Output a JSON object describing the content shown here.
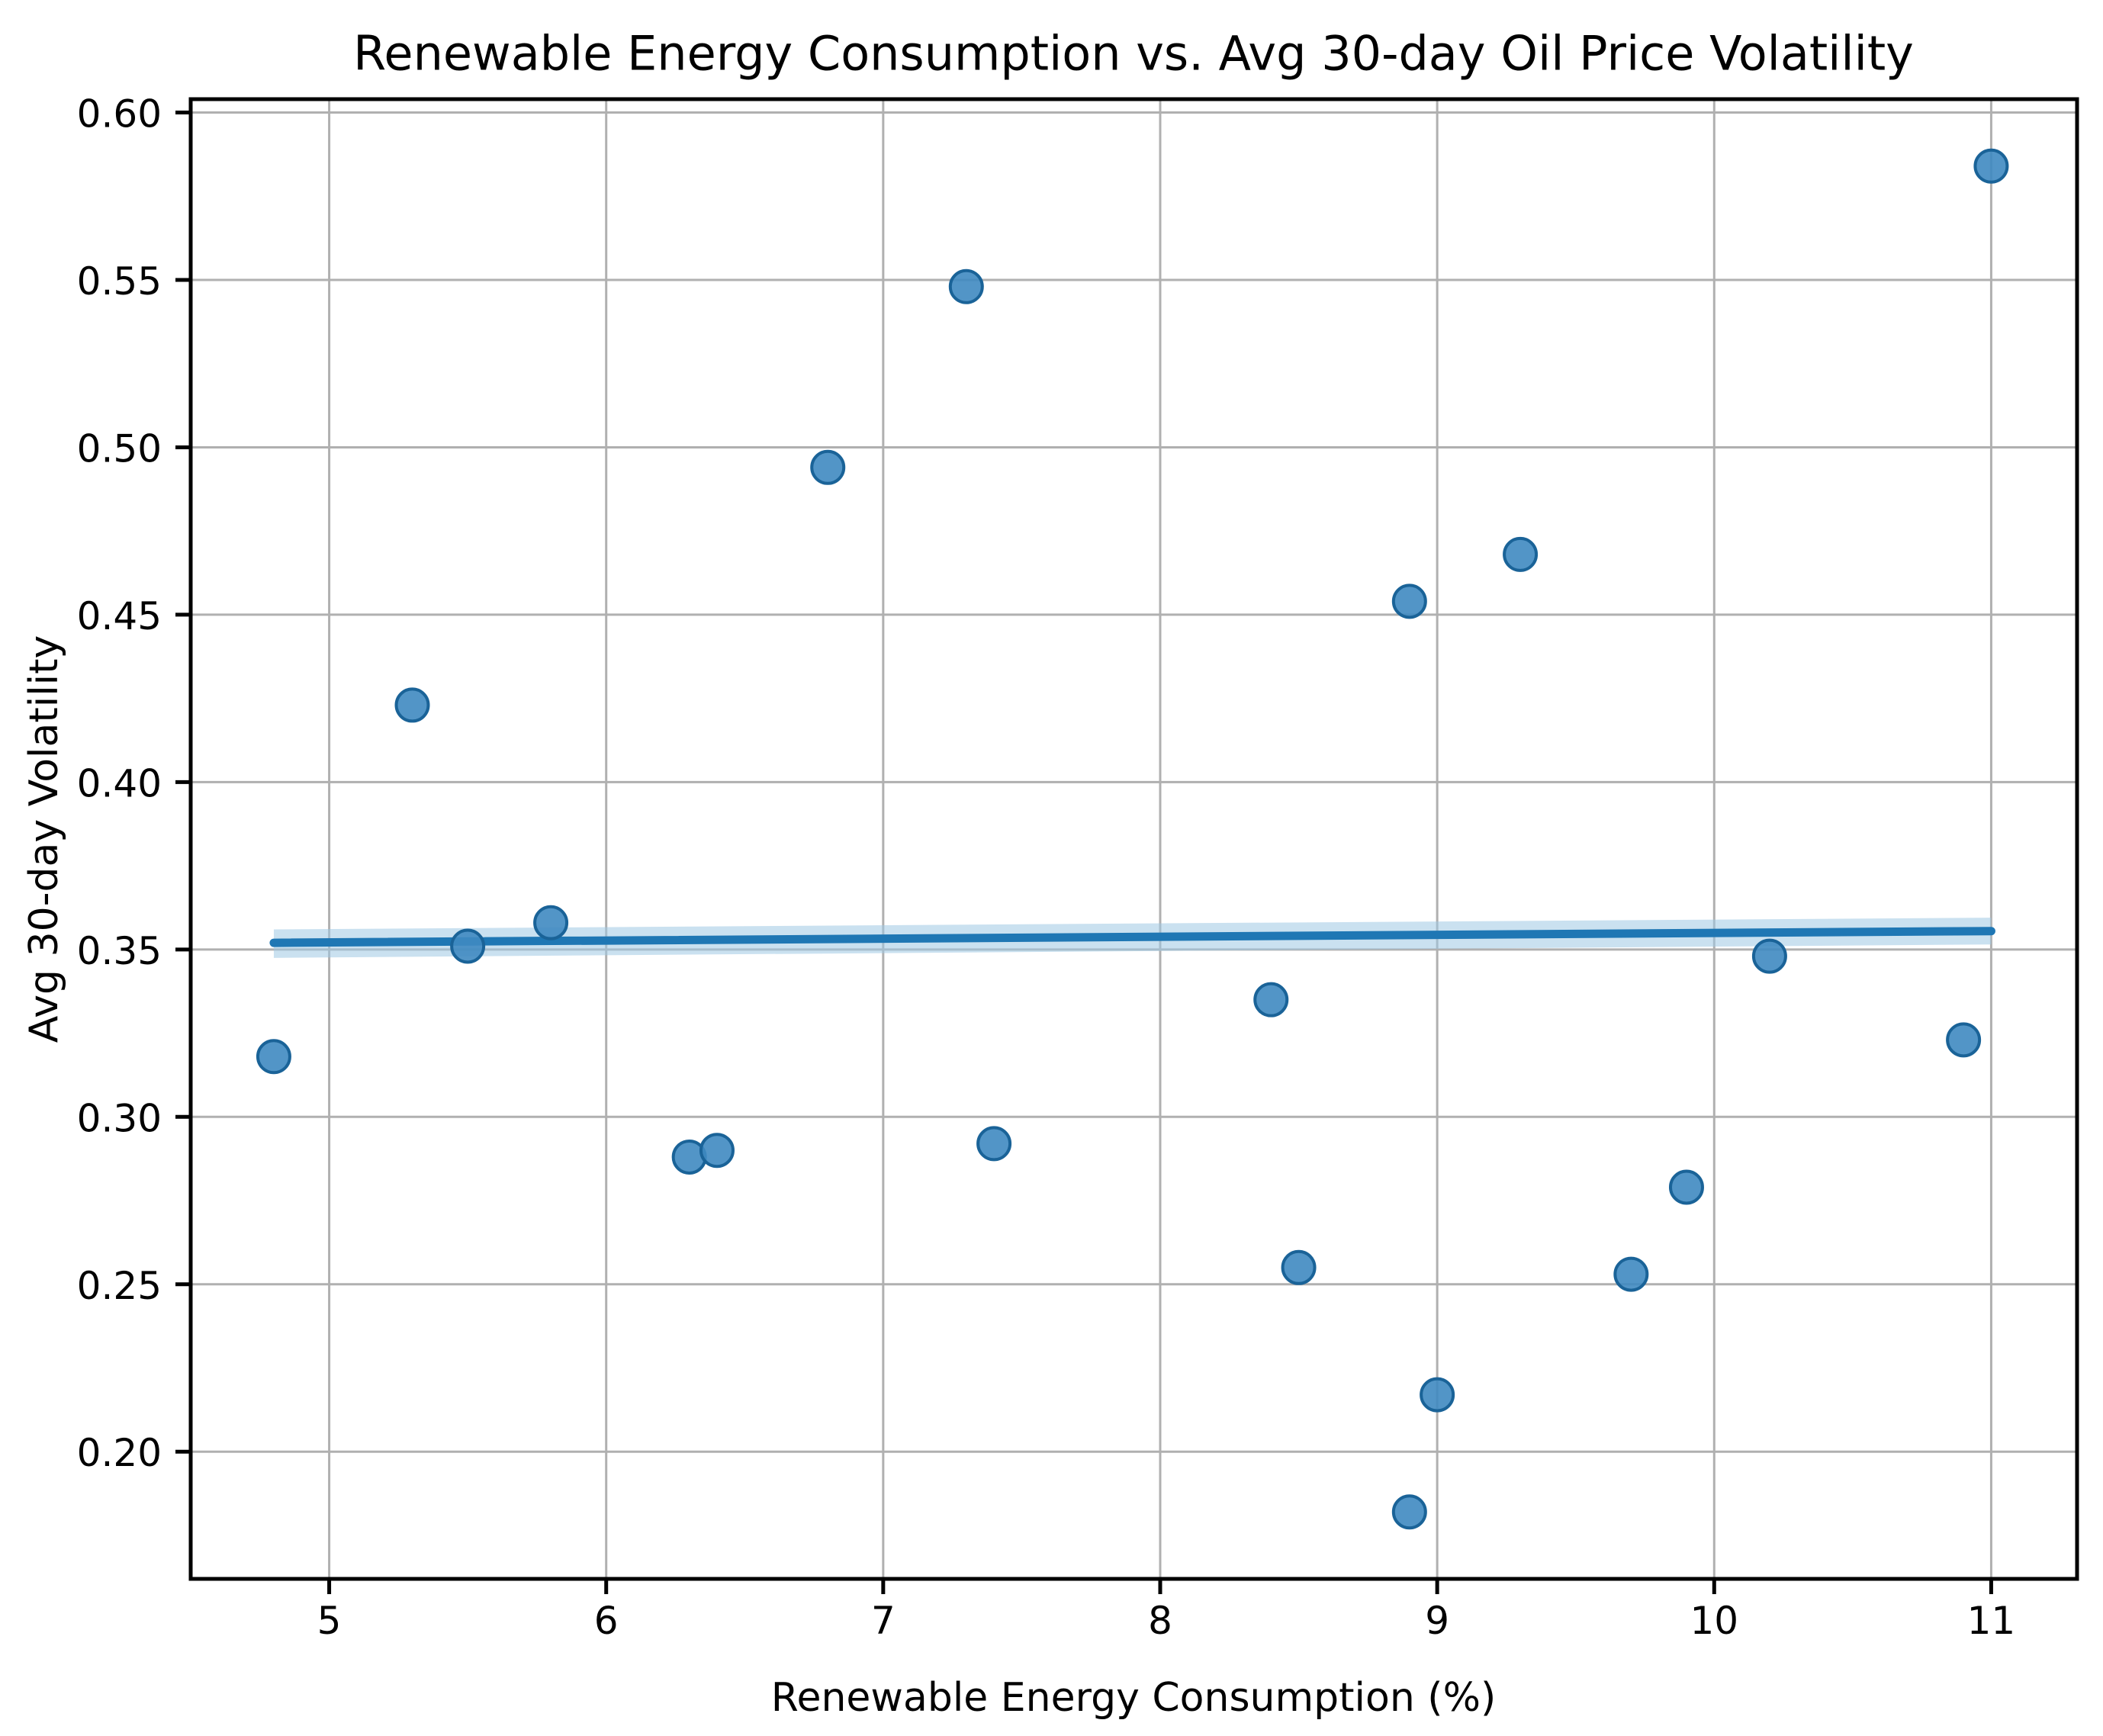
{
  "figure": {
    "background": "#ffffff"
  },
  "chart_data": {
    "type": "scatter",
    "title": "Renewable Energy Consumption vs. Avg 30-day Oil Price Volatility",
    "xlabel": "Renewable Energy Consumption (%)",
    "ylabel": "Avg 30-day Volatility",
    "xlim": [
      4.5,
      11.31
    ],
    "ylim": [
      0.162,
      0.604
    ],
    "x_ticks": [
      5,
      6,
      7,
      8,
      9,
      10,
      11
    ],
    "y_ticks": [
      0.2,
      0.25,
      0.3,
      0.35,
      0.4,
      0.45,
      0.5,
      0.55,
      0.6
    ],
    "grid": true,
    "legend": "none",
    "points": [
      [
        4.8,
        0.318
      ],
      [
        5.3,
        0.423
      ],
      [
        5.5,
        0.351
      ],
      [
        5.8,
        0.358
      ],
      [
        6.3,
        0.288
      ],
      [
        6.4,
        0.29
      ],
      [
        6.8,
        0.494
      ],
      [
        7.3,
        0.548
      ],
      [
        7.4,
        0.292
      ],
      [
        8.4,
        0.335
      ],
      [
        8.5,
        0.255
      ],
      [
        8.9,
        0.454
      ],
      [
        8.9,
        0.182
      ],
      [
        9.0,
        0.217
      ],
      [
        9.3,
        0.468
      ],
      [
        9.7,
        0.253
      ],
      [
        9.9,
        0.279
      ],
      [
        10.2,
        0.348
      ],
      [
        10.9,
        0.323
      ],
      [
        11.0,
        0.584
      ]
    ],
    "trendline": {
      "x": [
        4.8,
        11.0
      ],
      "y": [
        0.352,
        0.3555
      ]
    },
    "ci_band": {
      "x": [
        4.8,
        11.0
      ],
      "upper": [
        0.356,
        0.3595
      ],
      "lower": [
        0.3475,
        0.3515
      ]
    },
    "colors": {
      "marker_fill": "#3f8ac1",
      "marker_edge": "#1a6398",
      "trend_line": "#1f77b4",
      "band": "#9ec8e4",
      "grid_line": "#b0b0b0",
      "spine": "#000000",
      "text": "#000000"
    }
  }
}
